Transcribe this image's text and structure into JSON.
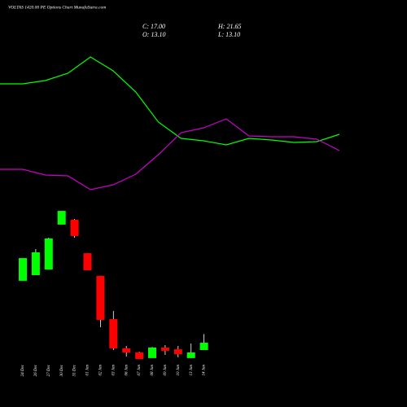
{
  "chart_data": [
    {
      "type": "candlestick",
      "title": "VOLTAS 1420.00 PE Options Chart MunafaSutra.com",
      "ohlc_labels": {
        "close": "C: 17.00",
        "open": "O: 13.10",
        "high": "H: 21.65",
        "low": "L: 13.10"
      },
      "categories": [
        "24 Dec",
        "26 Dec",
        "27 Dec",
        "30 Dec",
        "31 Dec",
        "01 Jan",
        "02 Jan",
        "03 Jan",
        "06 Jan",
        "07 Jan",
        "08 Jan",
        "09 Jan",
        "10 Jan",
        "13 Jan",
        "14 Jan"
      ],
      "open": [
        50.1,
        53.1,
        56.1,
        80.1,
        82.7,
        64.8,
        52.7,
        29.6,
        14.0,
        11.8,
        8.8,
        14.4,
        13.5,
        8.8,
        13.1
      ],
      "high": [
        62.2,
        67.0,
        73.1,
        87.4,
        83.1,
        64.8,
        52.7,
        34.0,
        15.3,
        12.2,
        14.8,
        15.7,
        15.3,
        16.6,
        21.65
      ],
      "low": [
        50.1,
        53.1,
        56.1,
        80.1,
        73.1,
        55.7,
        25.3,
        13.1,
        9.6,
        8.3,
        8.8,
        10.5,
        9.2,
        8.8,
        13.1
      ],
      "close": [
        62.2,
        65.3,
        72.7,
        87.4,
        74.0,
        55.7,
        29.2,
        14.0,
        11.8,
        8.3,
        14.4,
        12.7,
        10.9,
        11.8,
        17.0
      ],
      "up_color": "#00ff00",
      "down_color": "#ff0000"
    },
    {
      "type": "line",
      "x": [
        0,
        1,
        2,
        3,
        4,
        5,
        6,
        7,
        8,
        9,
        10,
        11,
        12,
        13,
        14,
        15
      ],
      "ylim": [
        0,
        100
      ],
      "series": [
        {
          "color": "#00ff00",
          "values": [
            78.5,
            78.5,
            80.5,
            85,
            95,
            86.5,
            73.5,
            55,
            45,
            43.5,
            41,
            45,
            44,
            42.5,
            43,
            47.5
          ]
        },
        {
          "color": "#cc00cc",
          "values": [
            26,
            26,
            22.5,
            22,
            13.5,
            16.5,
            23,
            35,
            48.5,
            51.5,
            57,
            46.5,
            46,
            46,
            44.5,
            37.5
          ]
        }
      ]
    }
  ]
}
